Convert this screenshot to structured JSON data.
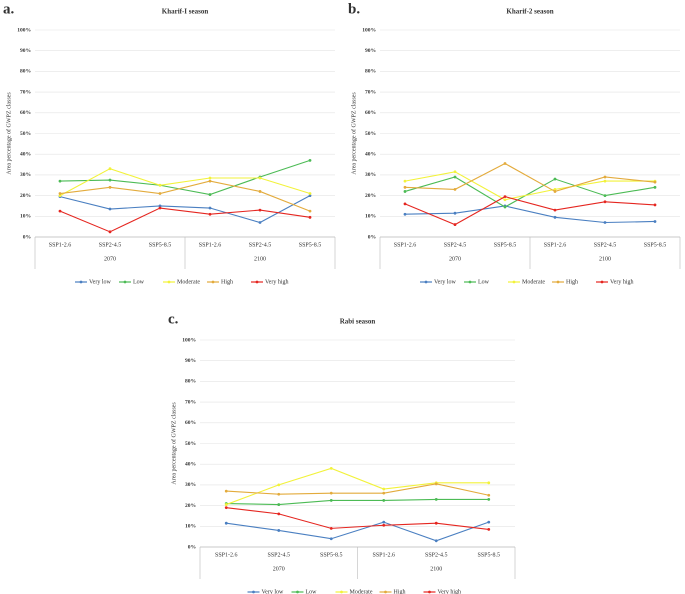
{
  "chart_data": [
    {
      "type": "line",
      "panel_label": "a.",
      "title": "Kharif-I season",
      "y_label": "Area percentage of GWPZ classes",
      "categories": [
        "SSP1-2.6",
        "SSP2-4.5",
        "SSP5-8.5",
        "SSP1-2.6",
        "SSP2-4.5",
        "SSP5-8.5"
      ],
      "category_groups": [
        "2070",
        "2100"
      ],
      "ylim": [
        0,
        100
      ],
      "yticks": [
        {
          "value": 0,
          "label": "0%"
        },
        {
          "value": 10,
          "label": "10%"
        },
        {
          "value": 20,
          "label": "20%"
        },
        {
          "value": 30,
          "label": "30%"
        },
        {
          "value": 40,
          "label": "40%"
        },
        {
          "value": 50,
          "label": "50%"
        },
        {
          "value": 60,
          "label": "60%"
        },
        {
          "value": 70,
          "label": "70%"
        },
        {
          "value": 80,
          "label": "80%"
        },
        {
          "value": 90,
          "label": "90%"
        },
        {
          "value": 100,
          "label": "100%"
        }
      ],
      "grid": true,
      "legend": "bottom",
      "series": [
        {
          "name": "Very low",
          "color": "#4a7fc1",
          "values": [
            19.5,
            13.5,
            15,
            14,
            7,
            20
          ]
        },
        {
          "name": "Low",
          "color": "#4cbb55",
          "values": [
            27,
            27.5,
            25,
            20.5,
            29,
            37
          ]
        },
        {
          "name": "Moderate",
          "color": "#f2f23a",
          "values": [
            20,
            33,
            25,
            28.5,
            28.5,
            21
          ]
        },
        {
          "name": "High",
          "color": "#e3ab3c",
          "values": [
            21,
            24,
            21,
            27,
            22,
            12.5
          ]
        },
        {
          "name": "Very high",
          "color": "#e52620",
          "values": [
            12.5,
            2.5,
            14,
            11,
            13,
            9.5
          ]
        }
      ]
    },
    {
      "type": "line",
      "panel_label": "b.",
      "title": "Kharif-2 season",
      "y_label": "Area percentage of GWPZ classes",
      "categories": [
        "SSP1-2.6",
        "SSP2-4.5",
        "SSP5-8.5",
        "SSP1-2.6",
        "SSP2-4.5",
        "SSP5-8.5"
      ],
      "category_groups": [
        "2070",
        "2100"
      ],
      "ylim": [
        0,
        100
      ],
      "yticks": [
        {
          "value": 0,
          "label": "0%"
        },
        {
          "value": 10,
          "label": "10%"
        },
        {
          "value": 20,
          "label": "20%"
        },
        {
          "value": 30,
          "label": "30%"
        },
        {
          "value": 40,
          "label": "40%"
        },
        {
          "value": 50,
          "label": "50%"
        },
        {
          "value": 60,
          "label": "60%"
        },
        {
          "value": 70,
          "label": "70%"
        },
        {
          "value": 80,
          "label": "80%"
        },
        {
          "value": 90,
          "label": "90%"
        },
        {
          "value": 100,
          "label": "100%"
        }
      ],
      "grid": true,
      "legend": "bottom",
      "series": [
        {
          "name": "Very low",
          "color": "#4a7fc1",
          "values": [
            11,
            11.5,
            15,
            9.5,
            7,
            7.5
          ]
        },
        {
          "name": "Low",
          "color": "#4cbb55",
          "values": [
            22,
            29,
            14.5,
            28,
            20,
            24
          ]
        },
        {
          "name": "Moderate",
          "color": "#f2f23a",
          "values": [
            27,
            31.5,
            18,
            23,
            27,
            27
          ]
        },
        {
          "name": "High",
          "color": "#e3ab3c",
          "values": [
            24,
            23,
            35.5,
            22,
            29,
            26.5
          ]
        },
        {
          "name": "Very high",
          "color": "#e52620",
          "values": [
            16,
            6,
            19.5,
            13,
            17,
            15.5
          ]
        }
      ]
    },
    {
      "type": "line",
      "panel_label": "c.",
      "title": "Rabi season",
      "y_label": "Area percentage of GWPZ classes",
      "categories": [
        "SSP1-2.6",
        "SSP2-4.5",
        "SSP5-8.5",
        "SSP1-2.6",
        "SSP2-4.5",
        "SSP5-8.5"
      ],
      "category_groups": [
        "2070",
        "2100"
      ],
      "ylim": [
        0,
        100
      ],
      "yticks": [
        {
          "value": 0,
          "label": "0%"
        },
        {
          "value": 10,
          "label": "10%"
        },
        {
          "value": 20,
          "label": "20%"
        },
        {
          "value": 30,
          "label": "30%"
        },
        {
          "value": 40,
          "label": "40%"
        },
        {
          "value": 50,
          "label": "50%"
        },
        {
          "value": 60,
          "label": "60%"
        },
        {
          "value": 70,
          "label": "70%"
        },
        {
          "value": 80,
          "label": "80%"
        },
        {
          "value": 90,
          "label": "90%"
        },
        {
          "value": 100,
          "label": "100%"
        }
      ],
      "grid": true,
      "legend": "bottom",
      "series": [
        {
          "name": "Very low",
          "color": "#4a7fc1",
          "values": [
            11.5,
            8,
            4,
            12,
            3,
            12
          ]
        },
        {
          "name": "Low",
          "color": "#4cbb55",
          "values": [
            21,
            20.5,
            22.5,
            22.5,
            23,
            23
          ]
        },
        {
          "name": "Moderate",
          "color": "#f2f23a",
          "values": [
            20.5,
            30,
            38,
            28,
            31,
            31
          ]
        },
        {
          "name": "High",
          "color": "#e3ab3c",
          "values": [
            27,
            25.5,
            26,
            26,
            30.5,
            25
          ]
        },
        {
          "name": "Very high",
          "color": "#e52620",
          "values": [
            19,
            16,
            9,
            10.5,
            11.5,
            8.5
          ]
        }
      ]
    }
  ]
}
